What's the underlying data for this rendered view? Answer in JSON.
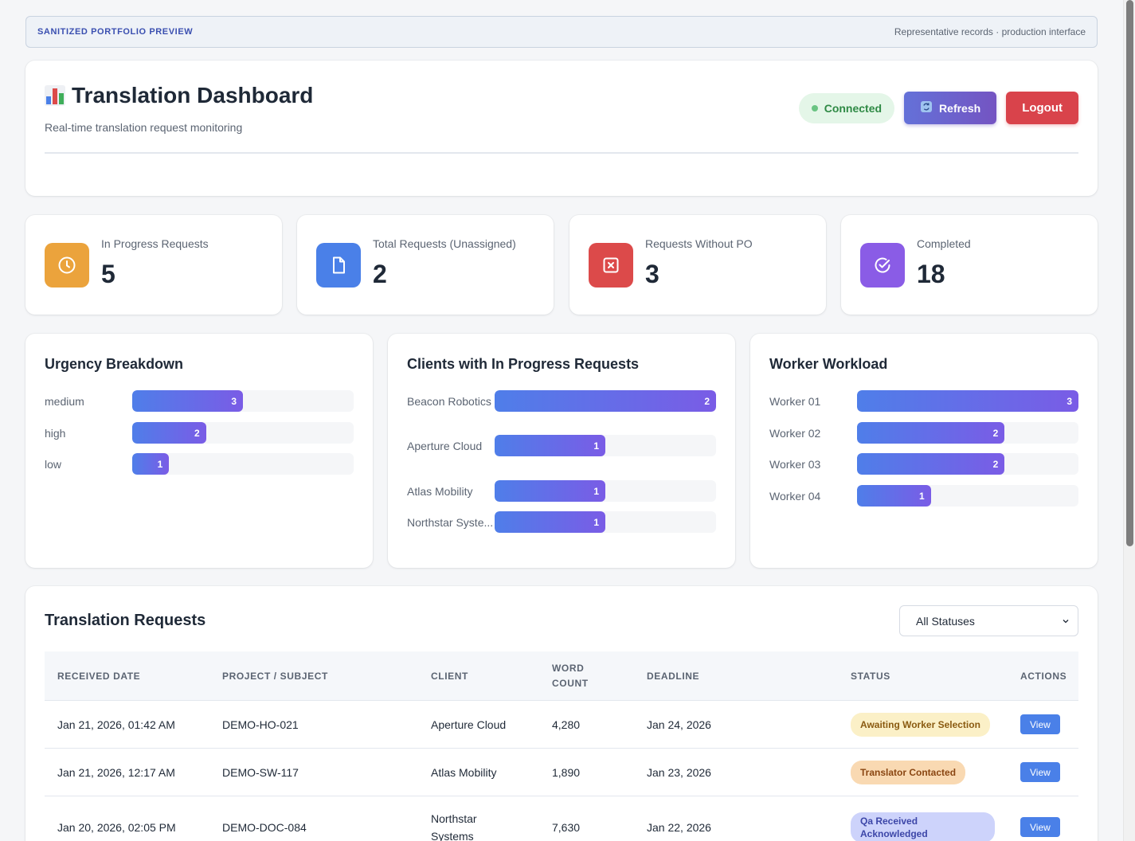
{
  "banner": {
    "label": "SANITIZED PORTFOLIO PREVIEW",
    "note": "Representative records · production interface"
  },
  "header": {
    "title": "Translation Dashboard",
    "subtitle": "Real-time translation request monitoring",
    "connection_status": "Connected",
    "refresh_label": "Refresh",
    "logout_label": "Logout"
  },
  "stats": [
    {
      "label": "In Progress Requests",
      "value": "5",
      "icon": "clock-icon",
      "color": "#eba33c"
    },
    {
      "label": "Total Requests (Unassigned)",
      "value": "2",
      "icon": "document-icon",
      "color": "#4a80e8"
    },
    {
      "label": "Requests Without PO",
      "value": "3",
      "icon": "x-square-icon",
      "color": "#dc4a4a"
    },
    {
      "label": "Completed",
      "value": "18",
      "icon": "check-circle-icon",
      "color": "#8a5ce6"
    }
  ],
  "chart_data": [
    {
      "type": "bar",
      "title": "Urgency Breakdown",
      "categories": [
        "medium",
        "high",
        "low"
      ],
      "values": [
        3,
        2,
        1
      ],
      "xlim": [
        0,
        6
      ]
    },
    {
      "type": "bar",
      "title": "Clients with In Progress Requests",
      "categories": [
        "Beacon Robotics",
        "Aperture Cloud",
        "Atlas Mobility",
        "Northstar Syste..."
      ],
      "values": [
        2,
        1,
        1,
        1
      ],
      "xlim": [
        0,
        2
      ]
    },
    {
      "type": "bar",
      "title": "Worker Workload",
      "categories": [
        "Worker 01",
        "Worker 02",
        "Worker 03",
        "Worker 04"
      ],
      "values": [
        3,
        2,
        2,
        1
      ],
      "xlim": [
        0,
        3
      ]
    }
  ],
  "requests": {
    "title": "Translation Requests",
    "filter_value": "All Statuses",
    "columns": [
      "RECEIVED DATE",
      "PROJECT / SUBJECT",
      "CLIENT",
      "WORD COUNT",
      "DEADLINE",
      "STATUS",
      "ACTIONS"
    ],
    "rows": [
      {
        "received": "Jan 21, 2026, 01:42 AM",
        "project": "DEMO-HO-021",
        "client": "Aperture Cloud",
        "words": "4,280",
        "deadline": "Jan 24, 2026",
        "status": "Awaiting Worker Selection",
        "action": "View"
      },
      {
        "received": "Jan 21, 2026, 12:17 AM",
        "project": "DEMO-SW-117",
        "client": "Atlas Mobility",
        "words": "1,890",
        "deadline": "Jan 23, 2026",
        "status": "Translator Contacted",
        "action": "View"
      },
      {
        "received": "Jan 20, 2026, 02:05 PM",
        "project": "DEMO-DOC-084",
        "client": "Northstar Systems",
        "words": "7,630",
        "deadline": "Jan 22, 2026",
        "status": "Qa Received Acknowledged",
        "action": "View"
      }
    ]
  }
}
